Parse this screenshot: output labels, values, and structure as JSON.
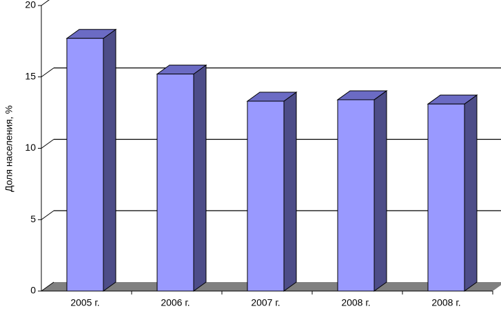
{
  "chart_data": {
    "type": "bar3d",
    "y_label": "Доля населения, %",
    "categories": [
      "2005 г.",
      "2006 г.",
      "2007 г.",
      "2008 г.",
      "2008 г."
    ],
    "values": [
      17.7,
      15.2,
      13.3,
      13.4,
      13.1
    ],
    "color": "#9999ff",
    "ylim": [
      0,
      20
    ],
    "yticks": [
      0,
      5,
      10,
      15,
      20
    ],
    "grid": true
  }
}
